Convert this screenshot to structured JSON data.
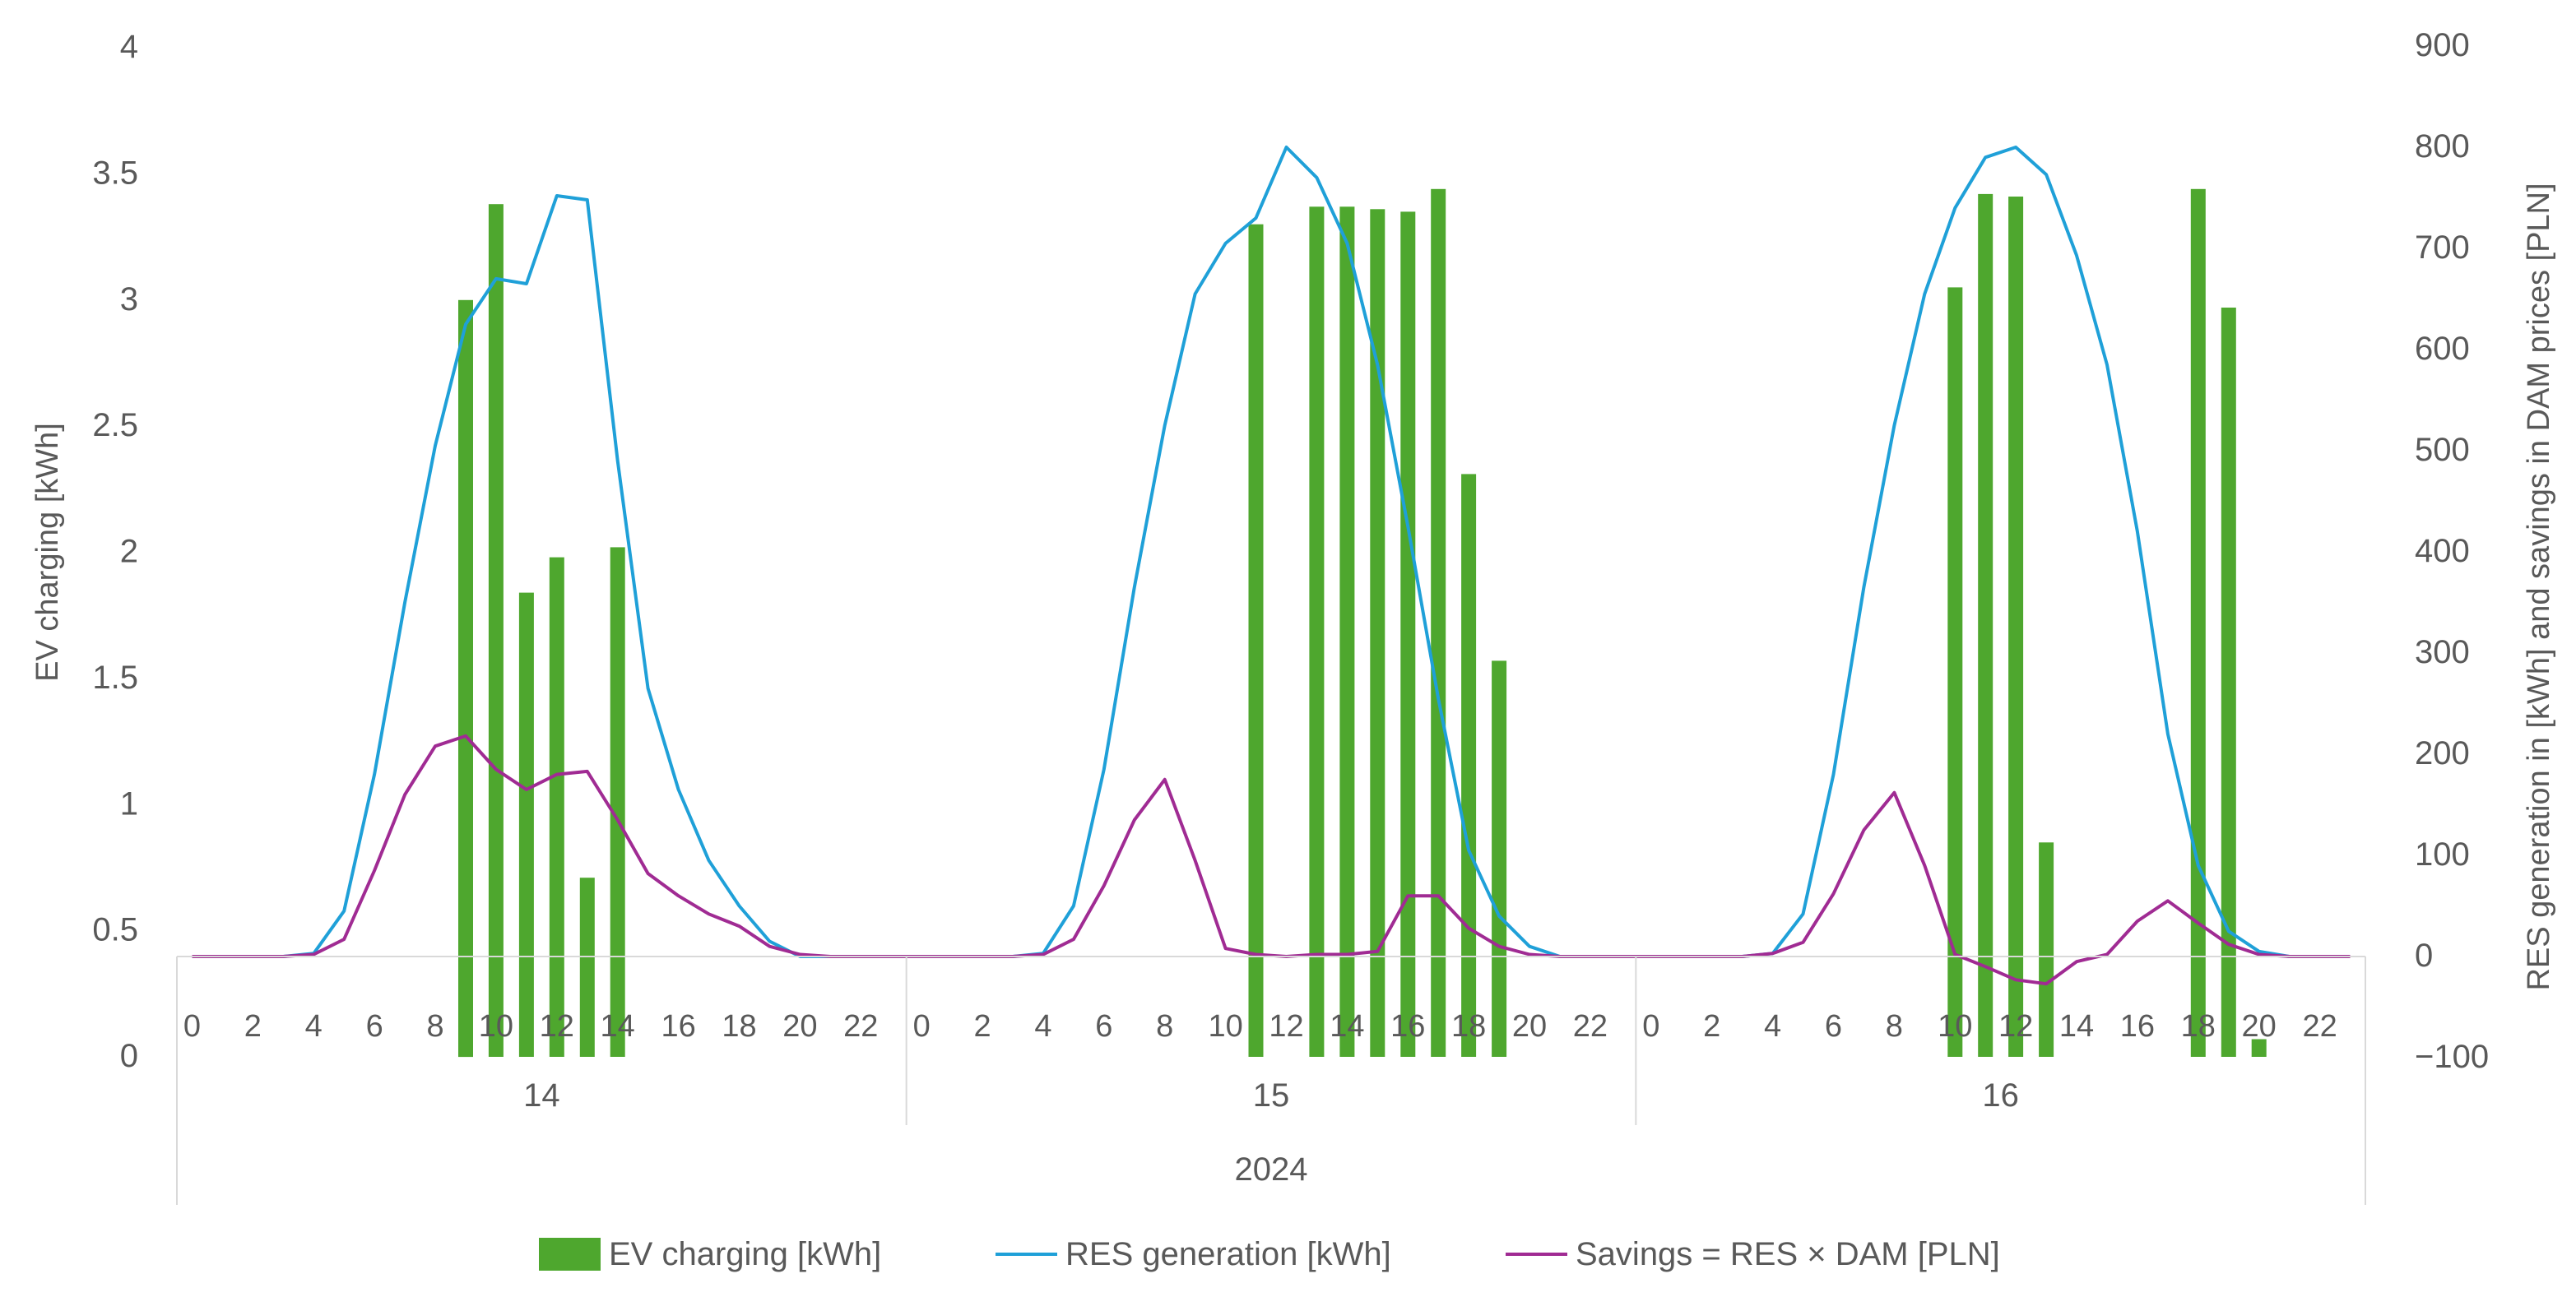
{
  "chart_data": {
    "type": "bar",
    "title": "",
    "ylabel": "EV charging [kWh]",
    "y2label": "RES generation in [kWh] and savings in DAM prices [PLN]",
    "xlabel": "",
    "ylim": [
      0,
      4
    ],
    "y_ticks": [
      0,
      0.5,
      1,
      1.5,
      2,
      2.5,
      3,
      3.5,
      4
    ],
    "y_tick_labels": [
      "0",
      "0.5",
      "1",
      "1.5",
      "2",
      "2.5",
      "3",
      "3.5",
      "4"
    ],
    "y2lim": [
      -100,
      900
    ],
    "y2_ticks": [
      -100,
      0,
      100,
      200,
      300,
      400,
      500,
      600,
      700,
      800,
      900
    ],
    "y2_tick_labels": [
      "−100",
      "0",
      "100",
      "200",
      "300",
      "400",
      "500",
      "600",
      "700",
      "800",
      "900"
    ],
    "year_label": "2024",
    "day_labels": [
      "14",
      "15",
      "16"
    ],
    "hours_per_day": 24,
    "hour_tick_labels": [
      "0",
      "2",
      "4",
      "6",
      "8",
      "10",
      "12",
      "14",
      "16",
      "18",
      "20",
      "22"
    ],
    "series": [
      {
        "name": "EV charging [kWh]",
        "type": "bar",
        "axis": "left",
        "color": "#4ea72e",
        "values": [
          0,
          0,
          0,
          0,
          0,
          0,
          0,
          0,
          0,
          3.0,
          3.38,
          1.84,
          1.98,
          0.71,
          2.02,
          0,
          0,
          0,
          0,
          0,
          0,
          0,
          0,
          0,
          0,
          0,
          0,
          0,
          0,
          0,
          0,
          0,
          0,
          0,
          0,
          3.3,
          0,
          3.37,
          3.37,
          3.36,
          3.35,
          3.44,
          2.31,
          1.57,
          0,
          0,
          0,
          0,
          0,
          0,
          0,
          0,
          0,
          0,
          0,
          0,
          0,
          0,
          3.05,
          3.42,
          3.41,
          0.85,
          0,
          0,
          0,
          0,
          3.44,
          2.97,
          0.07,
          0,
          0,
          0
        ]
      },
      {
        "name": "RES generation [kWh]",
        "type": "line",
        "axis": "right",
        "color": "#1fa0d8",
        "values": [
          0,
          0,
          0,
          0,
          3,
          45,
          180,
          350,
          505,
          625,
          670,
          665,
          752,
          748,
          490,
          265,
          165,
          95,
          50,
          15,
          0,
          0,
          0,
          0,
          0,
          0,
          0,
          0,
          3,
          50,
          185,
          365,
          525,
          655,
          705,
          730,
          800,
          770,
          705,
          585,
          425,
          255,
          105,
          40,
          10,
          0,
          0,
          0,
          0,
          0,
          0,
          0,
          3,
          42,
          180,
          365,
          525,
          655,
          740,
          790,
          800,
          773,
          693,
          585,
          420,
          220,
          90,
          25,
          5,
          0,
          0,
          0
        ]
      },
      {
        "name": "Savings = RES × DAM [PLN]",
        "type": "line",
        "axis": "right",
        "color": "#a02b93",
        "values": [
          0,
          0,
          0,
          0,
          2,
          17,
          85,
          160,
          208,
          218,
          185,
          165,
          180,
          183,
          135,
          82,
          60,
          42,
          30,
          10,
          2,
          0,
          0,
          0,
          0,
          0,
          0,
          0,
          2,
          17,
          70,
          135,
          175,
          95,
          8,
          2,
          0,
          2,
          2,
          5,
          60,
          60,
          28,
          10,
          2,
          0,
          0,
          0,
          0,
          0,
          0,
          0,
          3,
          14,
          62,
          125,
          162,
          90,
          2,
          -10,
          -23,
          -27,
          -5,
          2,
          35,
          55,
          33,
          12,
          2,
          0,
          0,
          0
        ]
      }
    ],
    "legend_position": "bottom"
  }
}
